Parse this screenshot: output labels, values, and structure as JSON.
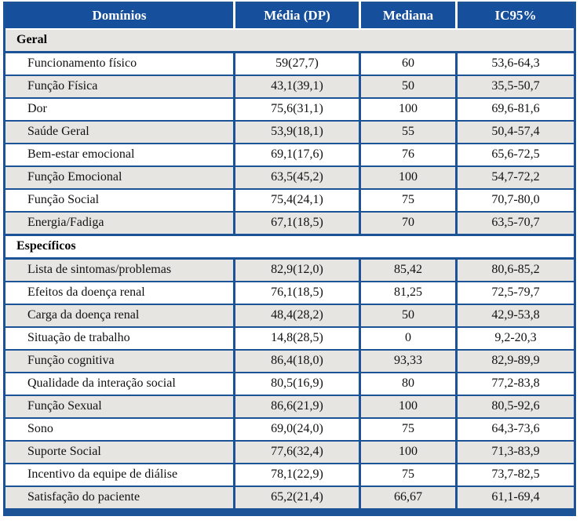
{
  "colors": {
    "navy": "#164F9C",
    "border": "#1B5396",
    "row_alt": "#E6E5E2",
    "header_text": "#FFFFFF"
  },
  "table": {
    "columns": [
      {
        "label": "Domínios"
      },
      {
        "label": "Média (DP)"
      },
      {
        "label": "Mediana"
      },
      {
        "label": "IC95%"
      }
    ],
    "sections": [
      {
        "title": "Geral",
        "rows": [
          {
            "domain": "Funcionamento físico",
            "media_dp": "59(27,7)",
            "mediana": "60",
            "ic95": "53,6-64,3"
          },
          {
            "domain": "Função Física",
            "media_dp": "43,1(39,1)",
            "mediana": "50",
            "ic95": "35,5-50,7"
          },
          {
            "domain": "Dor",
            "media_dp": "75,6(31,1)",
            "mediana": "100",
            "ic95": "69,6-81,6"
          },
          {
            "domain": "Saúde Geral",
            "media_dp": "53,9(18,1)",
            "mediana": "55",
            "ic95": "50,4-57,4"
          },
          {
            "domain": "Bem-estar emocional",
            "media_dp": "69,1(17,6)",
            "mediana": "76",
            "ic95": "65,6-72,5"
          },
          {
            "domain": "Função Emocional",
            "media_dp": "63,5(45,2)",
            "mediana": "100",
            "ic95": "54,7-72,2"
          },
          {
            "domain": "Função Social",
            "media_dp": "75,4(24,1)",
            "mediana": "75",
            "ic95": "70,7-80,0"
          },
          {
            "domain": "Energia/Fadiga",
            "media_dp": "67,1(18,5)",
            "mediana": "70",
            "ic95": "63,5-70,7"
          }
        ]
      },
      {
        "title": "Específicos",
        "rows": [
          {
            "domain": "Lista de sintomas/problemas",
            "media_dp": "82,9(12,0)",
            "mediana": "85,42",
            "ic95": "80,6-85,2"
          },
          {
            "domain": "Efeitos da doença renal",
            "media_dp": "76,1(18,5)",
            "mediana": "81,25",
            "ic95": "72,5-79,7"
          },
          {
            "domain": "Carga da doença renal",
            "media_dp": "48,4(28,2)",
            "mediana": "50",
            "ic95": "42,9-53,8"
          },
          {
            "domain": "Situação de trabalho",
            "media_dp": "14,8(28,5)",
            "mediana": "0",
            "ic95": "9,2-20,3"
          },
          {
            "domain": "Função cognitiva",
            "media_dp": "86,4(18,0)",
            "mediana": "93,33",
            "ic95": "82,9-89,9"
          },
          {
            "domain": "Qualidade da interação social",
            "media_dp": "80,5(16,9)",
            "mediana": "80",
            "ic95": "77,2-83,8"
          },
          {
            "domain": "Função Sexual",
            "media_dp": "86,6(21,9)",
            "mediana": "100",
            "ic95": "80,5-92,6"
          },
          {
            "domain": "Sono",
            "media_dp": "69,0(24,0)",
            "mediana": "75",
            "ic95": "64,3-73,6"
          },
          {
            "domain": "Suporte Social",
            "media_dp": "77,6(32,4)",
            "mediana": "100",
            "ic95": "71,3-83,9"
          },
          {
            "domain": "Incentivo da equipe de diálise",
            "media_dp": "78,1(22,9)",
            "mediana": "75",
            "ic95": "73,7-82,5"
          },
          {
            "domain": "Satisfação do paciente",
            "media_dp": "65,2(21,4)",
            "mediana": "66,67",
            "ic95": "61,1-69,4"
          }
        ]
      }
    ]
  }
}
